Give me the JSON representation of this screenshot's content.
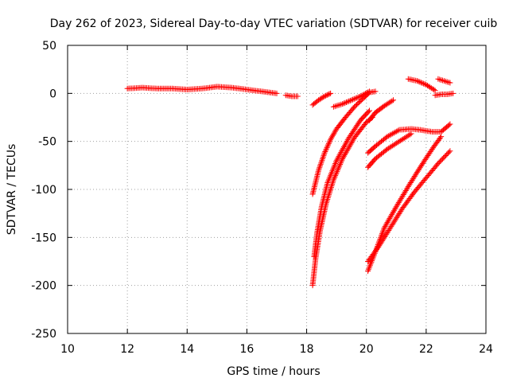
{
  "chart_data": {
    "type": "scatter",
    "title": "Day 262 of 2023, Sidereal Day-to-day VTEC variation (SDTVAR) for receiver cuib",
    "xlabel": "GPS time / hours",
    "ylabel": "SDTVAR / TECUs",
    "xlim": [
      10,
      24
    ],
    "ylim": [
      -250,
      50
    ],
    "xticks": [
      10,
      12,
      14,
      16,
      18,
      20,
      22,
      24
    ],
    "yticks": [
      -250,
      -200,
      -150,
      -100,
      -50,
      0,
      50
    ],
    "xtick_labels": [
      "10",
      "12",
      "14",
      "16",
      "18",
      "20",
      "22",
      "24"
    ],
    "ytick_labels": [
      "-250",
      "-200",
      "-150",
      "-100",
      "-50",
      "0",
      "50"
    ],
    "grid": true,
    "legend": "none",
    "marker": "plus",
    "color": "#ff0000",
    "series": [
      {
        "x": [
          12.0,
          12.5,
          13.0,
          13.5,
          14.0,
          14.5,
          15.0,
          15.5,
          16.0,
          16.5,
          17.0
        ],
        "y": [
          5,
          6,
          5,
          5,
          4,
          5,
          7,
          6,
          4,
          2,
          0
        ]
      },
      {
        "x": [
          17.3,
          17.5,
          17.7
        ],
        "y": [
          -2,
          -3,
          -3
        ]
      },
      {
        "x": [
          18.2,
          18.4,
          18.6,
          18.8
        ],
        "y": [
          -12,
          -7,
          -3,
          0
        ]
      },
      {
        "x": [
          18.9,
          19.2,
          19.5,
          19.8,
          20.1
        ],
        "y": [
          -14,
          -11,
          -7,
          -3,
          2
        ]
      },
      {
        "x": [
          18.2,
          18.4,
          18.6,
          18.8,
          19.0,
          19.3,
          19.6,
          19.9,
          20.1,
          20.3
        ],
        "y": [
          -105,
          -80,
          -62,
          -48,
          -37,
          -25,
          -14,
          -5,
          1,
          2
        ]
      },
      {
        "x": [
          18.25,
          18.35,
          18.5,
          18.7,
          19.0,
          19.4,
          19.8,
          20.1
        ],
        "y": [
          -170,
          -145,
          -118,
          -93,
          -70,
          -47,
          -28,
          -18
        ]
      },
      {
        "x": [
          18.2,
          18.3,
          18.45,
          18.65,
          18.9,
          19.2,
          19.6,
          20.0,
          20.2
        ],
        "y": [
          -200,
          -172,
          -143,
          -115,
          -90,
          -68,
          -46,
          -30,
          -25
        ]
      },
      {
        "x": [
          20.1,
          20.3,
          20.6,
          20.9
        ],
        "y": [
          -28,
          -20,
          -13,
          -7
        ]
      },
      {
        "x": [
          20.05,
          20.3,
          20.7,
          21.1,
          21.5,
          21.8,
          22.2,
          22.5,
          22.8
        ],
        "y": [
          -62,
          -55,
          -45,
          -38,
          -37,
          -38,
          -40,
          -40,
          -32
        ]
      },
      {
        "x": [
          20.05,
          20.3,
          20.7,
          21.1,
          21.5
        ],
        "y": [
          -77,
          -68,
          -58,
          -50,
          -42
        ]
      },
      {
        "x": [
          20.05,
          20.3,
          20.6,
          21.0,
          21.4,
          21.8,
          22.2,
          22.5
        ],
        "y": [
          -185,
          -165,
          -140,
          -118,
          -97,
          -77,
          -58,
          -45
        ]
      },
      {
        "x": [
          20.05,
          20.4,
          20.8,
          21.2,
          21.6,
          22.0,
          22.4,
          22.8
        ],
        "y": [
          -175,
          -160,
          -140,
          -120,
          -103,
          -88,
          -73,
          -60
        ]
      },
      {
        "x": [
          21.4,
          21.7,
          22.0,
          22.3
        ],
        "y": [
          15,
          13,
          9,
          3
        ]
      },
      {
        "x": [
          22.3,
          22.5,
          22.7,
          22.9
        ],
        "y": [
          -2,
          -1,
          -1,
          0
        ]
      },
      {
        "x": [
          22.4,
          22.6,
          22.8
        ],
        "y": [
          15,
          13,
          11
        ]
      }
    ]
  }
}
